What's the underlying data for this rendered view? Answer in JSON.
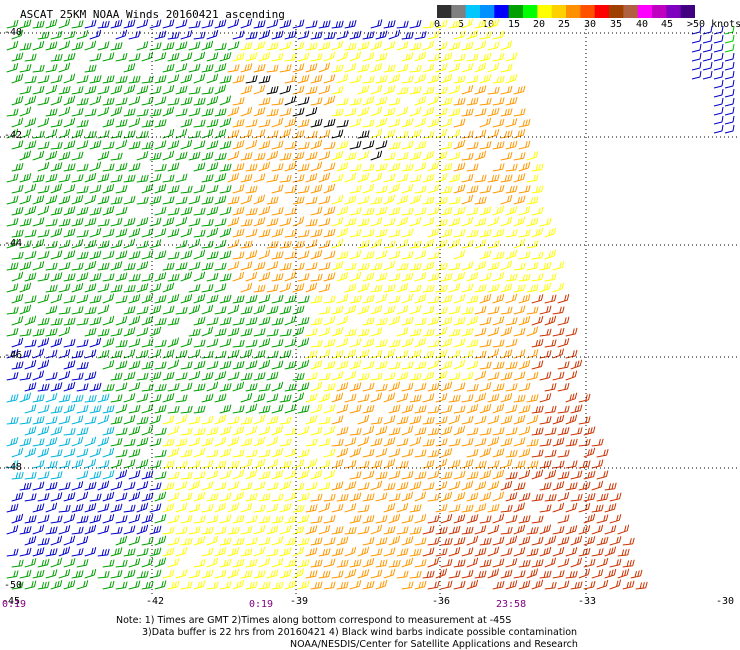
{
  "title": "ASCAT 25KM NOAA Winds 20160421 ascending",
  "scale": {
    "labels": [
      "0",
      "5",
      "10",
      "15",
      "20",
      "25",
      "30",
      "35",
      "40",
      "45",
      ">50 knots"
    ],
    "colors": [
      "#303030",
      "#808080",
      "#00c8ff",
      "#0090ff",
      "#0000ff",
      "#00a000",
      "#00ff00",
      "#ffff00",
      "#ffd000",
      "#ff9000",
      "#ff5000",
      "#ff0000",
      "#a04000",
      "#b06040",
      "#ff00ff",
      "#c000c0",
      "#8000c0",
      "#400080"
    ]
  },
  "latitude_labels": [
    "-40",
    "-42",
    "-44",
    "-46",
    "-48",
    "-50"
  ],
  "longitude_labels": [
    "-45",
    "-42",
    "-39",
    "-36",
    "-33",
    "-30"
  ],
  "time_labels": [
    "0:19",
    "0:19",
    "23:58"
  ],
  "notes": [
    "Note: 1) Times are GMT 2)Times along bottom correspond to measurement at -45S",
    "3)Data buffer is 22 hrs from 20160421 4) Black wind barbs indicate possible contamination",
    "NOAA/NESDIS/Center for Satellite Applications and Research"
  ],
  "legend_colors": {
    "speed_0_10": "#0000c8",
    "speed_10_15": "#00b4dc",
    "speed_15_20": "#00a000",
    "speed_20_25": "#ffff00",
    "speed_25_30": "#ff9900",
    "speed_30_35": "#cc3300",
    "contaminated": "#000000"
  }
}
